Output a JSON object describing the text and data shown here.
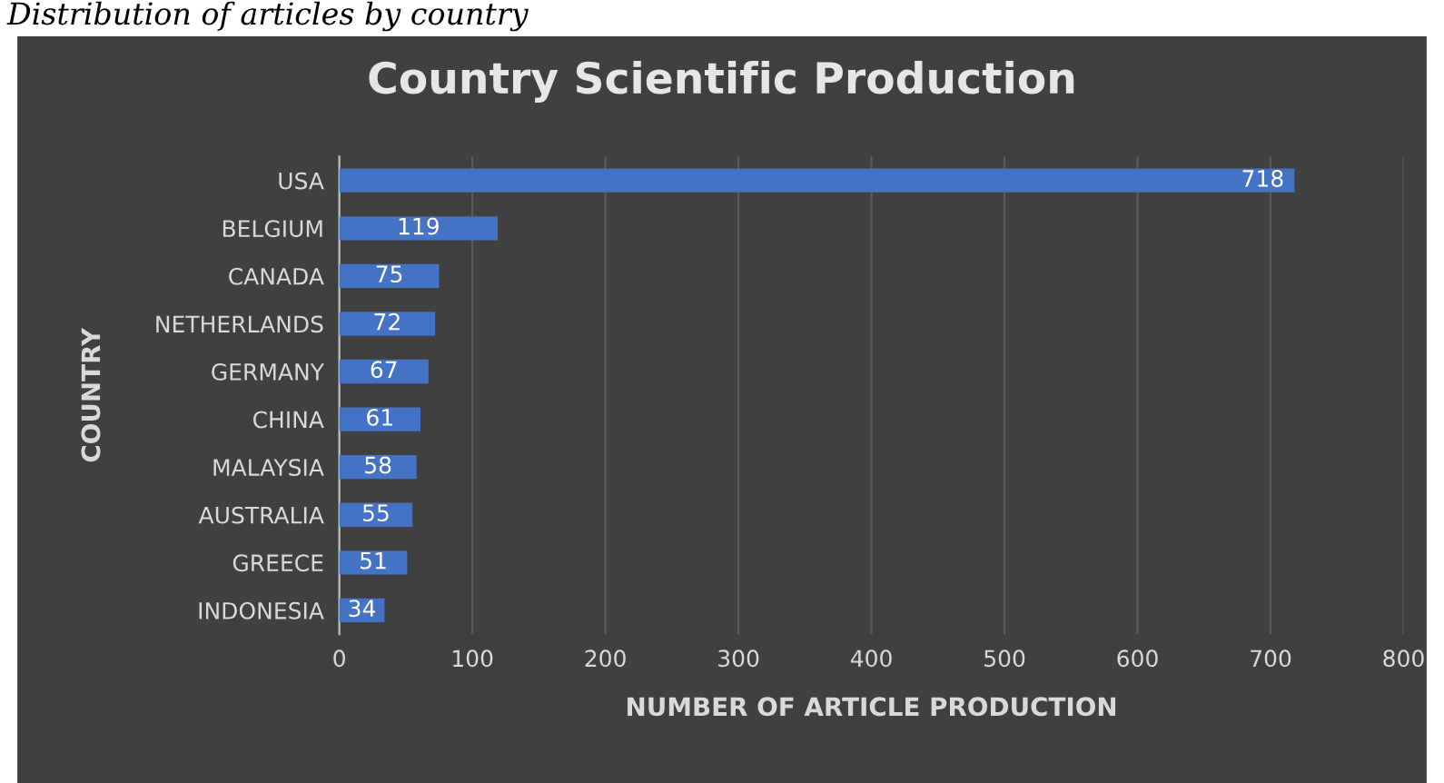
{
  "chart_data": {
    "type": "bar",
    "orientation": "horizontal",
    "title": "Country Scientific Production",
    "xlabel": "NUMBER OF ARTICLE PRODUCTION",
    "ylabel": "COUNTRY",
    "annotations": [
      "Distribution of articles by country"
    ],
    "categories": [
      "USA",
      "BELGIUM",
      "CANADA",
      "NETHERLANDS",
      "GERMANY",
      "CHINA",
      "MALAYSIA",
      "AUSTRALIA",
      "GREECE",
      "INDONESIA"
    ],
    "values": [
      718,
      119,
      75,
      72,
      67,
      61,
      58,
      55,
      51,
      34
    ],
    "color": "#4472c4",
    "xlim": [
      0,
      800
    ],
    "xticks": [
      0,
      100,
      200,
      300,
      400,
      500,
      600,
      700,
      800
    ],
    "grid": "x",
    "data_labels": true
  }
}
